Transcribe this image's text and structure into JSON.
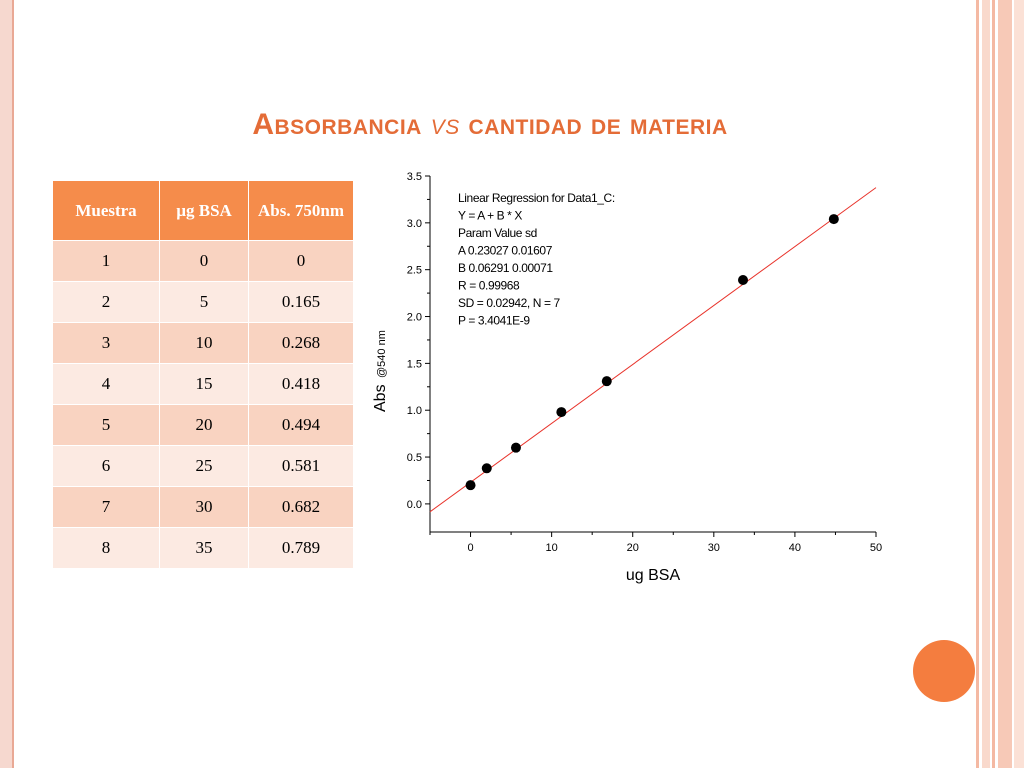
{
  "slide": {
    "title_main": "Absorbancia ",
    "title_vs": "vs",
    "title_rest": " cantidad de materia"
  },
  "table": {
    "headers": [
      "Muestra",
      "µg BSA",
      "Abs. 750nm"
    ],
    "rows": [
      [
        "1",
        "0",
        "0"
      ],
      [
        "2",
        "5",
        "0.165"
      ],
      [
        "3",
        "10",
        "0.268"
      ],
      [
        "4",
        "15",
        "0.418"
      ],
      [
        "5",
        "20",
        "0.494"
      ],
      [
        "6",
        "25",
        "0.581"
      ],
      [
        "7",
        "30",
        "0.682"
      ],
      [
        "8",
        "35",
        "0.789"
      ]
    ]
  },
  "chart_data": {
    "type": "scatter",
    "title": "",
    "xlabel": "ug BSA",
    "ylabel_main": "Abs",
    "ylabel_sub": "@540 nm",
    "xlim": [
      -5,
      50
    ],
    "ylim": [
      -0.3,
      3.5
    ],
    "x_ticks": [
      0,
      10,
      20,
      30,
      40,
      50
    ],
    "y_ticks": [
      0.0,
      0.5,
      1.0,
      1.5,
      2.0,
      2.5,
      3.0,
      3.5
    ],
    "x_tick_labels": [
      "0",
      "10",
      "20",
      "30",
      "40",
      "50"
    ],
    "y_tick_labels": [
      "0.0",
      "0.5",
      "1.0",
      "1.5",
      "2.0",
      "2.5",
      "3.0",
      "3.5"
    ],
    "points": [
      {
        "x": 0,
        "y": 0.2
      },
      {
        "x": 2,
        "y": 0.38
      },
      {
        "x": 5.6,
        "y": 0.6
      },
      {
        "x": 11.2,
        "y": 0.98
      },
      {
        "x": 16.8,
        "y": 1.31
      },
      {
        "x": 33.6,
        "y": 2.39
      },
      {
        "x": 44.8,
        "y": 3.04
      }
    ],
    "fit_line": {
      "intercept": 0.23027,
      "slope": 0.06291,
      "x_range": [
        -5,
        50
      ]
    },
    "fit_color": "#e8322a",
    "point_color": "#000000",
    "annotation": [
      "Linear Regression for Data1_C:",
      "Y = A + B * X",
      "Param   Value   sd",
      "A   0.23027   0.01607",
      "B   0.06291   0.00071",
      "R   = 0.99968",
      "SD = 0.02942, N = 7",
      "P = 3.4041E-9"
    ]
  },
  "colors": {
    "accent": "#e46c37",
    "table_header": "#f58c4b",
    "row_dark": "#f9d3c1",
    "row_light": "#fceae2",
    "circle": "#f47d3f"
  }
}
